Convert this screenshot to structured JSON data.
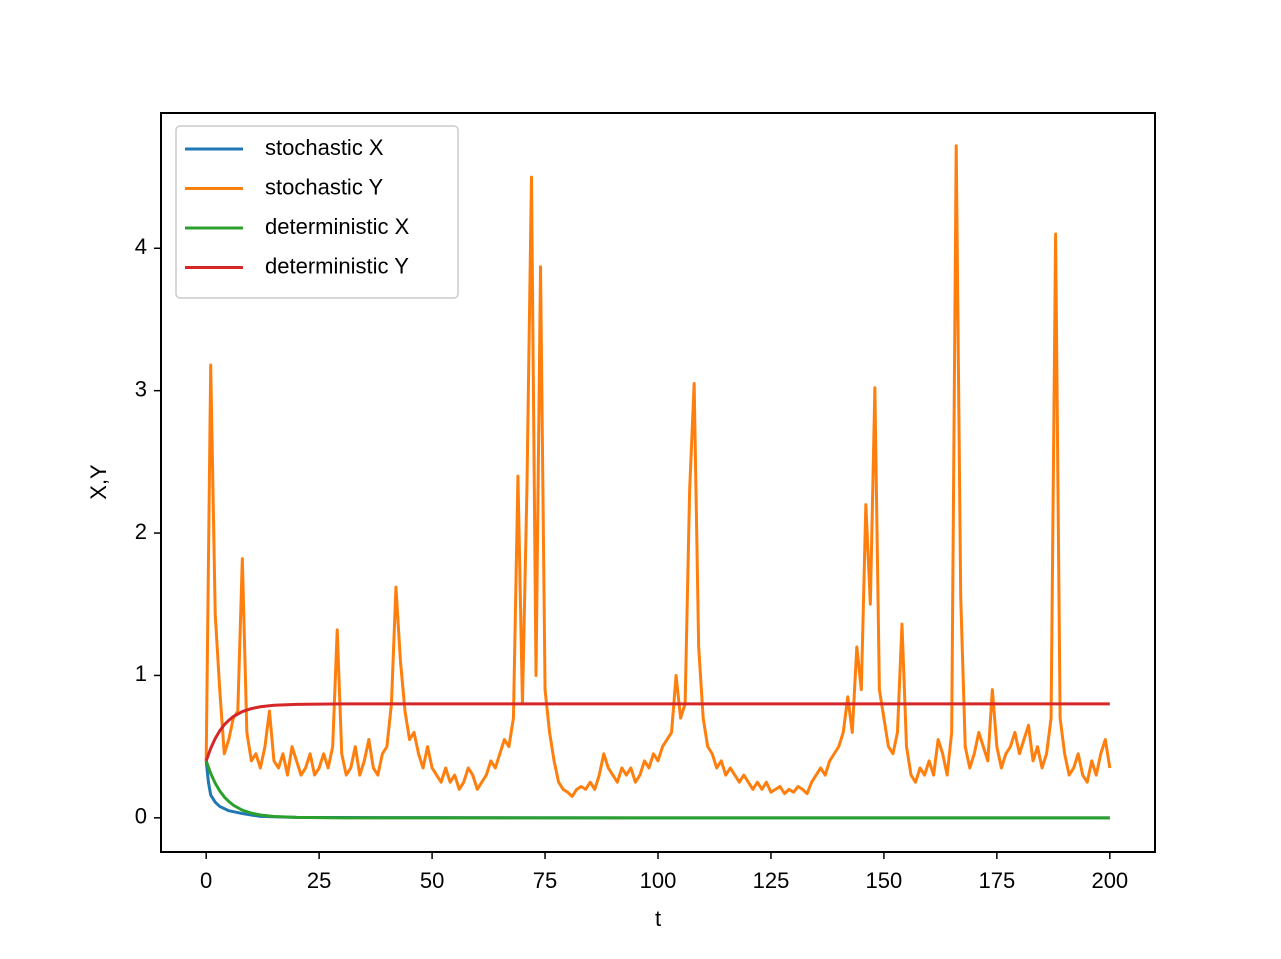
{
  "chart_data": {
    "type": "line",
    "xlabel": "t",
    "ylabel": "X,Y",
    "xlim": [
      -10,
      210
    ],
    "ylim": [
      -0.24,
      4.95
    ],
    "xticks": [
      0,
      25,
      50,
      75,
      100,
      125,
      150,
      175,
      200
    ],
    "yticks": [
      0,
      1,
      2,
      3,
      4
    ],
    "legend": "upper left",
    "series": [
      {
        "name": "stochastic X",
        "color": "#1f77b4",
        "x": [
          0,
          0.5,
          1,
          2,
          3,
          5,
          8,
          12,
          20,
          50,
          100,
          150,
          200
        ],
        "values": [
          0.4,
          0.25,
          0.16,
          0.11,
          0.08,
          0.05,
          0.03,
          0.01,
          0.003,
          0.001,
          0,
          0,
          0
        ]
      },
      {
        "name": "stochastic Y",
        "color": "#ff7f0e",
        "x": [
          0,
          1,
          2,
          3,
          4,
          5,
          6,
          7,
          8,
          9,
          10,
          11,
          12,
          13,
          14,
          15,
          16,
          17,
          18,
          19,
          20,
          21,
          22,
          23,
          24,
          25,
          26,
          27,
          28,
          29,
          30,
          31,
          32,
          33,
          34,
          35,
          36,
          37,
          38,
          39,
          40,
          41,
          42,
          43,
          44,
          45,
          46,
          47,
          48,
          49,
          50,
          51,
          52,
          53,
          54,
          55,
          56,
          57,
          58,
          59,
          60,
          61,
          62,
          63,
          64,
          65,
          66,
          67,
          68,
          69,
          70,
          71,
          72,
          73,
          74,
          75,
          76,
          77,
          78,
          79,
          80,
          81,
          82,
          83,
          84,
          85,
          86,
          87,
          88,
          89,
          90,
          91,
          92,
          93,
          94,
          95,
          96,
          97,
          98,
          99,
          100,
          101,
          102,
          103,
          104,
          105,
          106,
          107,
          108,
          109,
          110,
          111,
          112,
          113,
          114,
          115,
          116,
          117,
          118,
          119,
          120,
          121,
          122,
          123,
          124,
          125,
          126,
          127,
          128,
          129,
          130,
          131,
          132,
          133,
          134,
          135,
          136,
          137,
          138,
          139,
          140,
          141,
          142,
          143,
          144,
          145,
          146,
          147,
          148,
          149,
          150,
          151,
          152,
          153,
          154,
          155,
          156,
          157,
          158,
          159,
          160,
          161,
          162,
          163,
          164,
          165,
          166,
          167,
          168,
          169,
          170,
          171,
          172,
          173,
          174,
          175,
          176,
          177,
          178,
          179,
          180,
          181,
          182,
          183,
          184,
          185,
          186,
          187,
          188,
          189,
          190,
          191,
          192,
          193,
          194,
          195,
          196,
          197,
          198,
          199,
          200
        ],
        "values": [
          0.4,
          3.18,
          1.43,
          0.9,
          0.45,
          0.55,
          0.7,
          0.75,
          1.82,
          0.6,
          0.4,
          0.45,
          0.35,
          0.5,
          0.75,
          0.4,
          0.35,
          0.45,
          0.3,
          0.5,
          0.4,
          0.3,
          0.35,
          0.45,
          0.3,
          0.35,
          0.45,
          0.35,
          0.5,
          1.32,
          0.45,
          0.3,
          0.35,
          0.5,
          0.3,
          0.4,
          0.55,
          0.35,
          0.3,
          0.45,
          0.5,
          0.8,
          1.62,
          1.1,
          0.75,
          0.55,
          0.6,
          0.45,
          0.35,
          0.5,
          0.35,
          0.3,
          0.25,
          0.35,
          0.25,
          0.3,
          0.2,
          0.25,
          0.35,
          0.3,
          0.2,
          0.25,
          0.3,
          0.4,
          0.35,
          0.45,
          0.55,
          0.5,
          0.7,
          2.4,
          0.8,
          2.33,
          4.5,
          1.0,
          3.87,
          0.9,
          0.6,
          0.4,
          0.25,
          0.2,
          0.18,
          0.15,
          0.2,
          0.22,
          0.2,
          0.25,
          0.2,
          0.3,
          0.45,
          0.35,
          0.3,
          0.25,
          0.35,
          0.3,
          0.35,
          0.25,
          0.3,
          0.4,
          0.35,
          0.45,
          0.4,
          0.5,
          0.55,
          0.6,
          1.0,
          0.7,
          0.8,
          2.3,
          3.05,
          1.2,
          0.7,
          0.5,
          0.45,
          0.35,
          0.4,
          0.3,
          0.35,
          0.3,
          0.25,
          0.3,
          0.25,
          0.2,
          0.25,
          0.2,
          0.25,
          0.18,
          0.2,
          0.22,
          0.17,
          0.2,
          0.18,
          0.22,
          0.2,
          0.17,
          0.25,
          0.3,
          0.35,
          0.3,
          0.4,
          0.45,
          0.5,
          0.6,
          0.85,
          0.6,
          1.2,
          0.9,
          2.2,
          1.5,
          3.02,
          0.9,
          0.7,
          0.5,
          0.45,
          0.6,
          1.36,
          0.5,
          0.3,
          0.25,
          0.35,
          0.3,
          0.4,
          0.3,
          0.55,
          0.45,
          0.3,
          0.6,
          4.72,
          1.55,
          0.5,
          0.35,
          0.45,
          0.6,
          0.5,
          0.4,
          0.9,
          0.5,
          0.35,
          0.45,
          0.5,
          0.6,
          0.45,
          0.55,
          0.65,
          0.4,
          0.5,
          0.35,
          0.45,
          0.7,
          4.1,
          0.7,
          0.45,
          0.3,
          0.35,
          0.45,
          0.3,
          0.25,
          0.4,
          0.3,
          0.45,
          0.55,
          0.35
        ]
      },
      {
        "name": "deterministic X",
        "color": "#2ca02c",
        "x": [
          0,
          1,
          2,
          3,
          4,
          5,
          6,
          8,
          10,
          12,
          15,
          20,
          30,
          50,
          100,
          200
        ],
        "values": [
          0.4,
          0.312,
          0.243,
          0.189,
          0.147,
          0.115,
          0.089,
          0.054,
          0.033,
          0.02,
          0.009,
          0.003,
          0,
          0,
          0,
          0
        ]
      },
      {
        "name": "deterministic Y",
        "color": "#d62728",
        "x": [
          0,
          1,
          2,
          3,
          4,
          5,
          6,
          8,
          10,
          12,
          15,
          20,
          30,
          50,
          100,
          200
        ],
        "values": [
          0.4,
          0.488,
          0.557,
          0.611,
          0.653,
          0.685,
          0.711,
          0.746,
          0.767,
          0.78,
          0.791,
          0.797,
          0.8,
          0.8,
          0.8,
          0.8
        ]
      }
    ]
  }
}
